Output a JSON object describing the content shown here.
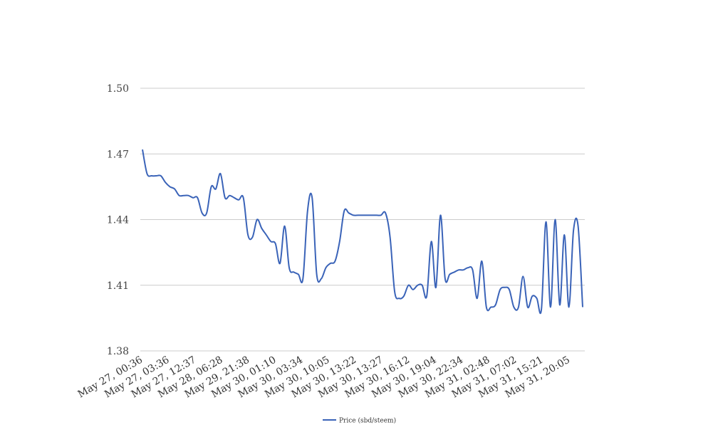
{
  "chart_data": {
    "type": "line",
    "title": "",
    "xlabel": "",
    "ylabel": "",
    "ylim": [
      1.38,
      1.5
    ],
    "yticks": [
      "1.50",
      "1.47",
      "1.44",
      "1.41",
      "1.38"
    ],
    "ytick_values": [
      1.5,
      1.47,
      1.44,
      1.41,
      1.38
    ],
    "xtick_labels": [
      "May 27, 00:36",
      "May 27, 03:36",
      "May 27, 12:37",
      "May 28, 06:28",
      "May 29, 21:38",
      "May 30, 01:10",
      "May 30, 03:34",
      "May 30, 10:05",
      "May 30, 13:22",
      "May 30, 13:27",
      "May 30, 16:12",
      "May 30, 19:04",
      "May 30, 22:34",
      "May 31, 02:48",
      "May 31, 07:02",
      "May 31, 15:21",
      "May 31, 20:05"
    ],
    "grid": true,
    "legend_position": "bottom",
    "series": [
      {
        "name": "Price (sbd/steem)",
        "color": "#3a63b8",
        "values": [
          1.472,
          1.461,
          1.46,
          1.46,
          1.46,
          1.457,
          1.455,
          1.454,
          1.451,
          1.451,
          1.451,
          1.45,
          1.45,
          1.443,
          1.443,
          1.455,
          1.454,
          1.461,
          1.45,
          1.451,
          1.45,
          1.449,
          1.45,
          1.433,
          1.432,
          1.44,
          1.436,
          1.433,
          1.43,
          1.429,
          1.42,
          1.437,
          1.418,
          1.416,
          1.415,
          1.413,
          1.444,
          1.45,
          1.415,
          1.413,
          1.418,
          1.42,
          1.421,
          1.43,
          1.444,
          1.443,
          1.442,
          1.442,
          1.442,
          1.442,
          1.442,
          1.442,
          1.442,
          1.443,
          1.432,
          1.407,
          1.404,
          1.405,
          1.41,
          1.408,
          1.41,
          1.41,
          1.405,
          1.43,
          1.409,
          1.442,
          1.413,
          1.415,
          1.416,
          1.417,
          1.417,
          1.418,
          1.417,
          1.404,
          1.421,
          1.4,
          1.4,
          1.401,
          1.408,
          1.409,
          1.408,
          1.4,
          1.4,
          1.414,
          1.4,
          1.405,
          1.404,
          1.399,
          1.439,
          1.4,
          1.44,
          1.401,
          1.433,
          1.4,
          1.435,
          1.437,
          1.4
        ]
      }
    ]
  }
}
